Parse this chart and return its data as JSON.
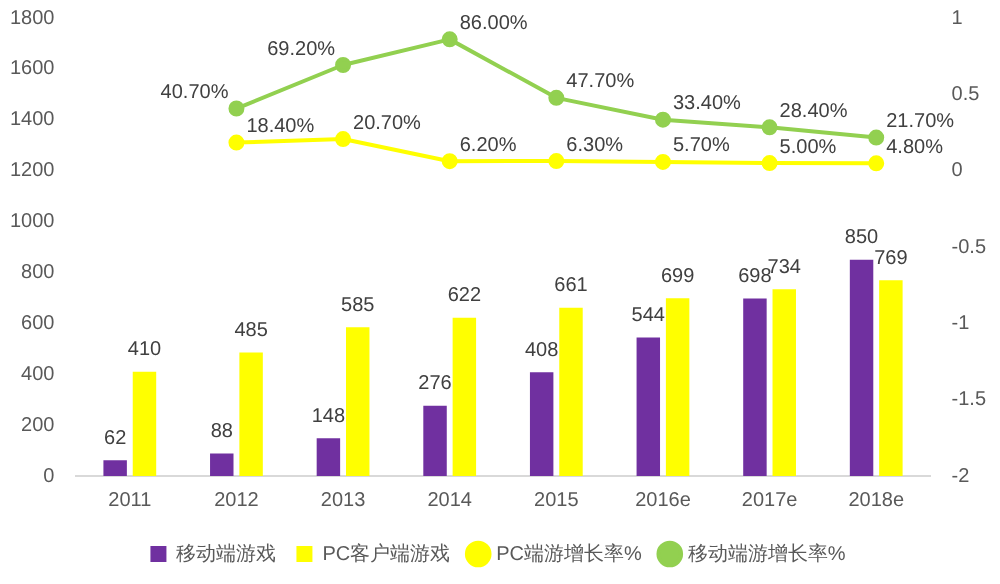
{
  "chart_data": {
    "type": "bar",
    "categories": [
      "2011",
      "2012",
      "2013",
      "2014",
      "2015",
      "2016e",
      "2017e",
      "2018e"
    ],
    "series": [
      {
        "name": "移动端游戏",
        "color": "#7030a0",
        "values": [
          62,
          88,
          148,
          276,
          408,
          544,
          698,
          850
        ]
      },
      {
        "name": "PC客户端游戏",
        "color": "#ffff00",
        "values": [
          410,
          485,
          585,
          622,
          661,
          699,
          734,
          769
        ]
      },
      {
        "name": "PC端游增长率%",
        "type": "line",
        "axis": "y2",
        "color": "#ffff00",
        "marker": "circle",
        "values": [
          null,
          0.184,
          0.207,
          0.062,
          0.063,
          0.057,
          0.05,
          0.048
        ],
        "value_labels": [
          null,
          "18.40%",
          "20.70%",
          "6.20%",
          "6.30%",
          "5.70%",
          "5.00%",
          "4.80%"
        ]
      },
      {
        "name": "移动端游增长率%",
        "type": "line",
        "axis": "y2",
        "color": "#92d050",
        "marker": "circle",
        "values": [
          null,
          0.407,
          0.692,
          0.86,
          0.477,
          0.334,
          0.284,
          0.217
        ],
        "value_labels": [
          null,
          "40.70%",
          "69.20%",
          "86.00%",
          "47.70%",
          "33.40%",
          "28.40%",
          "21.70%"
        ]
      }
    ],
    "data_labels": true,
    "ylim": [
      0,
      1800
    ],
    "yticks": [
      0,
      200,
      400,
      600,
      800,
      1000,
      1200,
      1400,
      1600,
      1800
    ],
    "y2lim": [
      -2,
      1
    ],
    "y2ticks": [
      -2,
      -1.5,
      -1,
      -0.5,
      0,
      0.5,
      1
    ],
    "grid": false,
    "legend": "bottom"
  }
}
